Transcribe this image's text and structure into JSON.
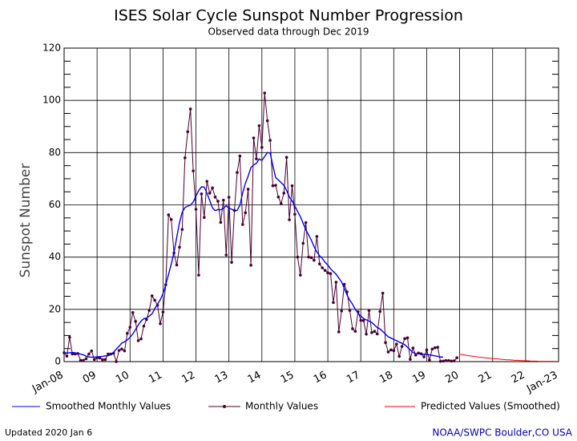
{
  "chart_data": {
    "type": "line",
    "title": "ISES Solar Cycle Sunspot Number Progression",
    "subtitle": "Observed data through Dec 2019",
    "y_label": "Sunspot Number",
    "footer_left": "Updated 2020 Jan  6",
    "footer_right": "NOAA/SWPC Boulder,CO USA",
    "xlim": [
      2008,
      2023
    ],
    "xticks": [
      {
        "value": 2008,
        "label": "Jan-08"
      },
      {
        "value": 2009,
        "label": "09"
      },
      {
        "value": 2010,
        "label": "10"
      },
      {
        "value": 2011,
        "label": "11"
      },
      {
        "value": 2012,
        "label": "12"
      },
      {
        "value": 2013,
        "label": "13"
      },
      {
        "value": 2014,
        "label": "14"
      },
      {
        "value": 2015,
        "label": "15"
      },
      {
        "value": 2016,
        "label": "16"
      },
      {
        "value": 2017,
        "label": "17"
      },
      {
        "value": 2018,
        "label": "18"
      },
      {
        "value": 2019,
        "label": "19"
      },
      {
        "value": 2020,
        "label": "20"
      },
      {
        "value": 2021,
        "label": "21"
      },
      {
        "value": 2022,
        "label": "22"
      },
      {
        "value": 2023,
        "label": "Jan-23"
      }
    ],
    "ylim": [
      0,
      120
    ],
    "yticks": [
      0,
      20,
      40,
      60,
      80,
      100,
      120
    ],
    "yminorticks": [
      5,
      10,
      15,
      25,
      30,
      35,
      45,
      50,
      55,
      65,
      70,
      75,
      85,
      90,
      95,
      105,
      110,
      115
    ],
    "grid": true,
    "x": [
      2008,
      2008.083,
      2008.167,
      2008.25,
      2008.333,
      2008.417,
      2008.5,
      2008.583,
      2008.667,
      2008.75,
      2008.833,
      2008.917,
      2009,
      2009.083,
      2009.167,
      2009.25,
      2009.333,
      2009.417,
      2009.5,
      2009.583,
      2009.667,
      2009.75,
      2009.833,
      2009.917,
      2010,
      2010.083,
      2010.167,
      2010.25,
      2010.333,
      2010.417,
      2010.5,
      2010.583,
      2010.667,
      2010.75,
      2010.833,
      2010.917,
      2011,
      2011.083,
      2011.167,
      2011.25,
      2011.333,
      2011.417,
      2011.5,
      2011.583,
      2011.667,
      2011.75,
      2011.833,
      2011.917,
      2012,
      2012.083,
      2012.167,
      2012.25,
      2012.333,
      2012.417,
      2012.5,
      2012.583,
      2012.667,
      2012.75,
      2012.833,
      2012.917,
      2013,
      2013.083,
      2013.167,
      2013.25,
      2013.333,
      2013.417,
      2013.5,
      2013.583,
      2013.667,
      2013.75,
      2013.833,
      2013.917,
      2014,
      2014.083,
      2014.167,
      2014.25,
      2014.333,
      2014.417,
      2014.5,
      2014.583,
      2014.667,
      2014.75,
      2014.833,
      2014.917,
      2015,
      2015.083,
      2015.167,
      2015.25,
      2015.333,
      2015.417,
      2015.5,
      2015.583,
      2015.667,
      2015.75,
      2015.833,
      2015.917,
      2016,
      2016.083,
      2016.167,
      2016.25,
      2016.333,
      2016.417,
      2016.5,
      2016.583,
      2016.667,
      2016.75,
      2016.833,
      2016.917,
      2017,
      2017.083,
      2017.167,
      2017.25,
      2017.333,
      2017.417,
      2017.5,
      2017.583,
      2017.667,
      2017.75,
      2017.833,
      2017.917,
      2018,
      2018.083,
      2018.167,
      2018.25,
      2018.333,
      2018.417,
      2018.5,
      2018.583,
      2018.667,
      2018.75,
      2018.833,
      2018.917,
      2019,
      2019.083,
      2019.167,
      2019.25,
      2019.333,
      2019.417,
      2019.5,
      2019.583,
      2019.667,
      2019.75,
      2019.833,
      2019.917,
      2020,
      2020.083,
      2020.167,
      2020.25,
      2020.333,
      2020.417,
      2020.5,
      2020.583,
      2020.667,
      2020.75,
      2020.833,
      2020.917,
      2021,
      2021.083,
      2021.167,
      2021.25,
      2021.333,
      2021.417,
      2021.5,
      2021.583,
      2021.667,
      2021.75,
      2021.833,
      2021.917,
      2022,
      2022.083,
      2022.167,
      2022.25,
      2022.333,
      2022.417,
      2022.5,
      2022.583,
      2022.667,
      2022.75,
      2022.833,
      2022.917
    ],
    "series": [
      {
        "name": "Smoothed Monthly Values",
        "color": "#0000ff",
        "markers": false,
        "values": [
          3.3,
          3.3,
          3.4,
          3.5,
          3.4,
          3.0,
          2.9,
          2.6,
          2.1,
          1.8,
          1.7,
          1.7,
          1.8,
          1.9,
          2.0,
          2.2,
          2.3,
          2.7,
          3.6,
          4.8,
          5.9,
          7.1,
          7.6,
          8.3,
          9.3,
          10.6,
          12.3,
          14.0,
          15.5,
          16.4,
          16.7,
          17.4,
          18.3,
          20.3,
          22.0,
          23.7,
          26.0,
          29.4,
          33.4,
          37.3,
          41.8,
          47.6,
          53.2,
          57.2,
          59.0,
          59.5,
          59.9,
          61.1,
          63.4,
          65.5,
          66.9,
          66.8,
          64.5,
          61.7,
          58.9,
          57.8,
          58.2,
          58.1,
          58.6,
          59.7,
          58.7,
          58.4,
          57.6,
          57.9,
          59.9,
          64.6,
          68.3,
          71.0,
          74.3,
          75.3,
          75.9,
          77.6,
          77.0,
          78.5,
          80.0,
          79.8,
          75.0,
          70.5,
          69.5,
          68.5,
          67.5,
          65.5,
          63.0,
          61.5,
          59.5,
          57.5,
          55.5,
          53.0,
          50.5,
          48.5,
          46.5,
          44.0,
          42.0,
          40.5,
          39.5,
          38.0,
          37.0,
          35.5,
          34.5,
          33.5,
          32.0,
          30.5,
          28.0,
          25.5,
          23.5,
          22.0,
          20.0,
          18.5,
          17.5,
          16.5,
          16.0,
          15.5,
          15.0,
          14.0,
          13.0,
          12.5,
          11.5,
          10.5,
          9.5,
          9.0,
          8.5,
          8.0,
          7.5,
          7.0,
          6.5,
          5.5,
          4.5,
          3.5,
          3.0,
          3.0,
          2.9,
          2.8,
          2.7,
          2.6,
          2.4,
          2.2,
          2.0,
          1.8,
          1.7,
          null,
          null,
          null,
          null,
          null,
          null,
          null,
          null,
          null,
          null,
          null,
          null,
          null,
          null,
          null,
          null,
          null,
          null,
          null,
          null,
          null,
          null,
          null,
          null,
          null,
          null,
          null,
          null,
          null,
          null,
          null,
          null,
          null,
          null,
          null,
          null,
          null,
          null,
          null,
          null,
          null
        ]
      },
      {
        "name": "Monthly Values",
        "color": "#4b0030",
        "markers": true,
        "values": [
          3.4,
          2.1,
          9.3,
          2.9,
          2.9,
          3.1,
          0.5,
          0.5,
          1.1,
          2.9,
          4.1,
          0.8,
          1.5,
          1.4,
          0.7,
          0.8,
          2.9,
          2.9,
          3.2,
          0,
          4.3,
          4.8,
          4.1,
          10.8,
          13.2,
          18.8,
          15.4,
          8.0,
          8.7,
          13.6,
          16.1,
          19.6,
          25.2,
          23.5,
          21.6,
          14.5,
          19.0,
          29.4,
          56.2,
          54.4,
          41.6,
          37.0,
          43.8,
          50.6,
          78.0,
          88.0,
          96.7,
          73.0,
          58.3,
          33.1,
          64.2,
          55.2,
          69.0,
          64.5,
          66.5,
          63.0,
          61.4,
          53.3,
          61.8,
          40.8,
          62.9,
          38.0,
          57.9,
          72.4,
          78.7,
          52.5,
          57.0,
          66.0,
          36.9,
          85.6,
          77.6,
          90.3,
          82.0,
          102.8,
          92.2,
          84.7,
          67.3,
          67.5,
          63.0,
          60.5,
          64.5,
          78.2,
          54.3,
          67.3,
          56.4,
          40.0,
          33.1,
          45.3,
          53.2,
          40.0,
          39.8,
          38.8,
          47.9,
          37.4,
          35.9,
          34.9,
          34.0,
          33.7,
          22.6,
          30.4,
          11.4,
          19.4,
          29.6,
          26.7,
          19.6,
          12.6,
          11.6,
          19.1,
          15.8,
          15.7,
          10.5,
          19.6,
          11.1,
          11.6,
          10.6,
          19.2,
          26.2,
          7.3,
          3.7,
          4.5,
          4.2,
          6.7,
          2.0,
          5.8,
          8.8,
          9.1,
          0.9,
          5.2,
          2.5,
          3.3,
          3.0,
          1.8,
          4.5,
          0.6,
          4.8,
          5.3,
          5.5,
          0.1,
          0.2,
          0.4,
          0.4,
          0.2,
          0.3,
          1.5,
          null,
          null,
          null,
          null,
          null,
          null,
          null,
          null,
          null,
          null,
          null,
          null,
          null,
          null,
          null,
          null,
          null,
          null,
          null,
          null,
          null,
          null,
          null,
          null,
          null,
          null,
          null,
          null,
          null,
          null,
          null,
          null,
          null,
          null,
          null,
          null
        ]
      },
      {
        "name": "Predicted Values (Smoothed)",
        "color": "#ff0000",
        "markers": false,
        "values": [
          null,
          null,
          null,
          null,
          null,
          null,
          null,
          null,
          null,
          null,
          null,
          null,
          null,
          null,
          null,
          null,
          null,
          null,
          null,
          null,
          null,
          null,
          null,
          null,
          null,
          null,
          null,
          null,
          null,
          null,
          null,
          null,
          null,
          null,
          null,
          null,
          null,
          null,
          null,
          null,
          null,
          null,
          null,
          null,
          null,
          null,
          null,
          null,
          null,
          null,
          null,
          null,
          null,
          null,
          null,
          null,
          null,
          null,
          null,
          null,
          null,
          null,
          null,
          null,
          null,
          null,
          null,
          null,
          null,
          null,
          null,
          null,
          null,
          null,
          null,
          null,
          null,
          null,
          null,
          null,
          null,
          null,
          null,
          null,
          null,
          null,
          null,
          null,
          null,
          null,
          null,
          null,
          null,
          null,
          null,
          null,
          null,
          null,
          null,
          null,
          null,
          null,
          null,
          null,
          null,
          null,
          null,
          null,
          null,
          null,
          null,
          null,
          null,
          null,
          null,
          null,
          null,
          null,
          null,
          null,
          null,
          null,
          null,
          null,
          null,
          null,
          null,
          null,
          null,
          null,
          null,
          null,
          null,
          null,
          null,
          null,
          null,
          null,
          null,
          null,
          null,
          null,
          null,
          null,
          2.8,
          2.7,
          2.5,
          2.3,
          2.2,
          2.0,
          1.9,
          1.7,
          1.6,
          1.5,
          1.4,
          1.3,
          1.2,
          1.1,
          1.0,
          0.9,
          0.8,
          0.7,
          0.7,
          0.6,
          0.5,
          0.5,
          0.4,
          0.4,
          0.3,
          0.3,
          0.2,
          0.2,
          0.2,
          0.1,
          0.1,
          0.1,
          0.1,
          0.1,
          0.1,
          0.1
        ]
      }
    ]
  }
}
